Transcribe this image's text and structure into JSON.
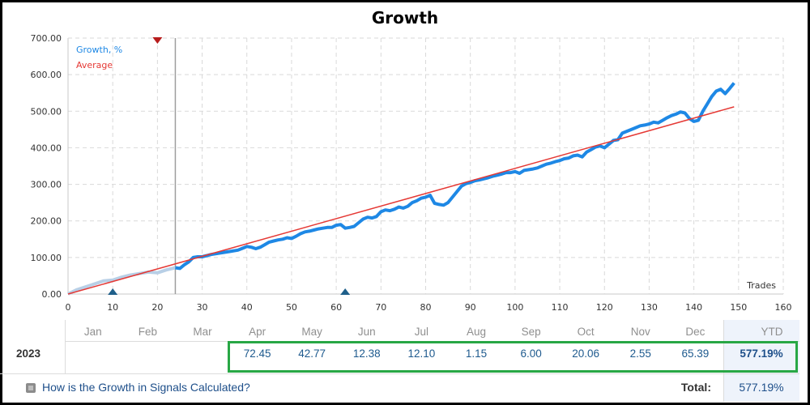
{
  "chart_data": {
    "type": "line",
    "title": "Growth",
    "xlabel": "Trades",
    "ylabel": "",
    "xlim": [
      0,
      160
    ],
    "ylim": [
      0,
      700
    ],
    "x_ticks": [
      0,
      10,
      20,
      30,
      40,
      50,
      60,
      70,
      80,
      90,
      100,
      110,
      120,
      130,
      140,
      150,
      160
    ],
    "y_ticks": [
      "0.00",
      "100.00",
      "200.00",
      "300.00",
      "400.00",
      "500.00",
      "600.00",
      "700.00"
    ],
    "grid": true,
    "legend_position": "top-left",
    "marker_line_x": 24,
    "series": [
      {
        "name": "Growth, %",
        "color": "#1e88e5",
        "faded_color": "#b8cfe6",
        "faded_until_x": 24,
        "x": [
          0,
          2,
          4,
          6,
          8,
          10,
          12,
          14,
          16,
          18,
          20,
          22,
          24,
          25,
          26,
          27,
          28,
          29,
          30,
          32,
          34,
          36,
          38,
          39,
          40,
          41,
          42,
          43,
          44,
          45,
          46,
          47,
          48,
          49,
          50,
          51,
          52,
          53,
          54,
          55,
          56,
          57,
          58,
          59,
          60,
          61,
          62,
          63,
          64,
          65,
          66,
          67,
          68,
          69,
          70,
          71,
          72,
          73,
          74,
          75,
          76,
          77,
          78,
          79,
          80,
          81,
          82,
          83,
          84,
          85,
          86,
          87,
          88,
          89,
          90,
          91,
          92,
          93,
          94,
          95,
          96,
          97,
          98,
          99,
          100,
          101,
          102,
          103,
          104,
          105,
          106,
          107,
          108,
          109,
          110,
          111,
          112,
          113,
          114,
          115,
          116,
          117,
          118,
          119,
          120,
          121,
          122,
          123,
          124,
          125,
          126,
          127,
          128,
          129,
          130,
          131,
          132,
          133,
          134,
          135,
          136,
          137,
          138,
          139,
          140,
          141,
          142,
          143,
          144,
          145,
          146,
          147,
          148,
          149
        ],
        "y": [
          0,
          12,
          20,
          28,
          36,
          38,
          46,
          52,
          56,
          60,
          58,
          66,
          72,
          70,
          80,
          88,
          100,
          102,
          102,
          108,
          112,
          116,
          120,
          125,
          130,
          128,
          124,
          128,
          135,
          142,
          145,
          148,
          150,
          154,
          152,
          158,
          165,
          170,
          172,
          175,
          178,
          180,
          182,
          182,
          188,
          190,
          180,
          182,
          185,
          195,
          205,
          210,
          208,
          212,
          225,
          230,
          228,
          232,
          238,
          235,
          240,
          250,
          255,
          262,
          265,
          270,
          248,
          245,
          243,
          250,
          265,
          280,
          295,
          302,
          305,
          310,
          312,
          315,
          318,
          322,
          325,
          328,
          332,
          332,
          335,
          330,
          338,
          340,
          342,
          345,
          350,
          355,
          358,
          362,
          365,
          370,
          372,
          378,
          380,
          375,
          388,
          395,
          402,
          405,
          400,
          410,
          420,
          422,
          440,
          445,
          450,
          455,
          460,
          462,
          465,
          470,
          468,
          475,
          482,
          488,
          492,
          498,
          495,
          480,
          472,
          475,
          500,
          520,
          540,
          555,
          560,
          548,
          562,
          577
        ]
      },
      {
        "name": "Average",
        "color": "#e53935",
        "x": [
          0,
          149
        ],
        "y": [
          0,
          512
        ]
      }
    ],
    "markers": [
      {
        "x": 20,
        "shape": "down-triangle",
        "color": "#b71c1c"
      },
      {
        "x": 10,
        "shape": "up-triangle",
        "color": "#1e5f8a"
      },
      {
        "x": 62,
        "shape": "up-triangle",
        "color": "#1e5f8a"
      }
    ]
  },
  "table": {
    "months": [
      "Jan",
      "Feb",
      "Mar",
      "Apr",
      "May",
      "Jun",
      "Jul",
      "Aug",
      "Sep",
      "Oct",
      "Nov",
      "Dec"
    ],
    "ytd_label": "YTD",
    "row_label": "2023",
    "values": [
      "",
      "",
      "",
      "72.45",
      "42.77",
      "12.38",
      "12.10",
      "1.15",
      "6.00",
      "20.06",
      "2.55",
      "65.39"
    ],
    "ytd_value": "577.19%",
    "highlight_color": "#28a745"
  },
  "footer": {
    "help_link": "How is the Growth in Signals Calculated?",
    "total_label": "Total:",
    "total_value": "577.19%"
  }
}
